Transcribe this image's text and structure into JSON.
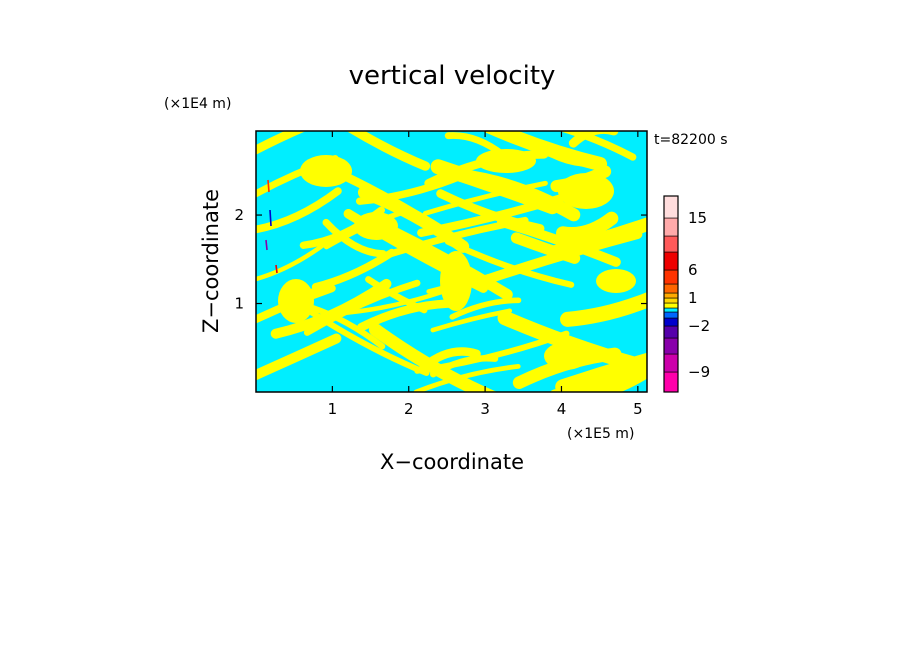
{
  "chart_data": {
    "type": "heatmap",
    "title": "vertical velocity",
    "xlabel": "X−coordinate",
    "ylabel": "Z−coordinate",
    "x_unit": "(×1E5 m)",
    "y_unit": "(×1E4 m)",
    "time_label": "t=82200 s",
    "xlim": [
      0,
      5.12
    ],
    "ylim": [
      0,
      2.95
    ],
    "x_ticks": [
      1,
      2,
      3,
      4,
      5
    ],
    "y_ticks": [
      1,
      2
    ],
    "x_tick_labels": [
      "1",
      "2",
      "3",
      "4",
      "5"
    ],
    "y_tick_labels": [
      "1",
      "2"
    ],
    "positive_color": "#ffff00",
    "negative_color": "#00eeff",
    "colorbar": {
      "levels": [
        -12,
        -9,
        -6,
        -4,
        -2,
        -1,
        -0.5,
        0,
        0.5,
        1,
        2,
        4,
        6,
        9,
        12,
        15,
        20
      ],
      "colors": [
        "#ff00aa",
        "#cc00aa",
        "#8800aa",
        "#5500aa",
        "#0000cc",
        "#0066ff",
        "#00eeff",
        "#ffff00",
        "#ffd700",
        "#ffaa00",
        "#ff6600",
        "#ff3300",
        "#ee0000",
        "#ff5a5a",
        "#ffaaaa",
        "#ffdddd"
      ],
      "tick_values": [
        -9,
        -2,
        1,
        6,
        15
      ],
      "tick_labels": [
        "−9",
        "−2",
        "1",
        "6",
        "15"
      ]
    }
  }
}
